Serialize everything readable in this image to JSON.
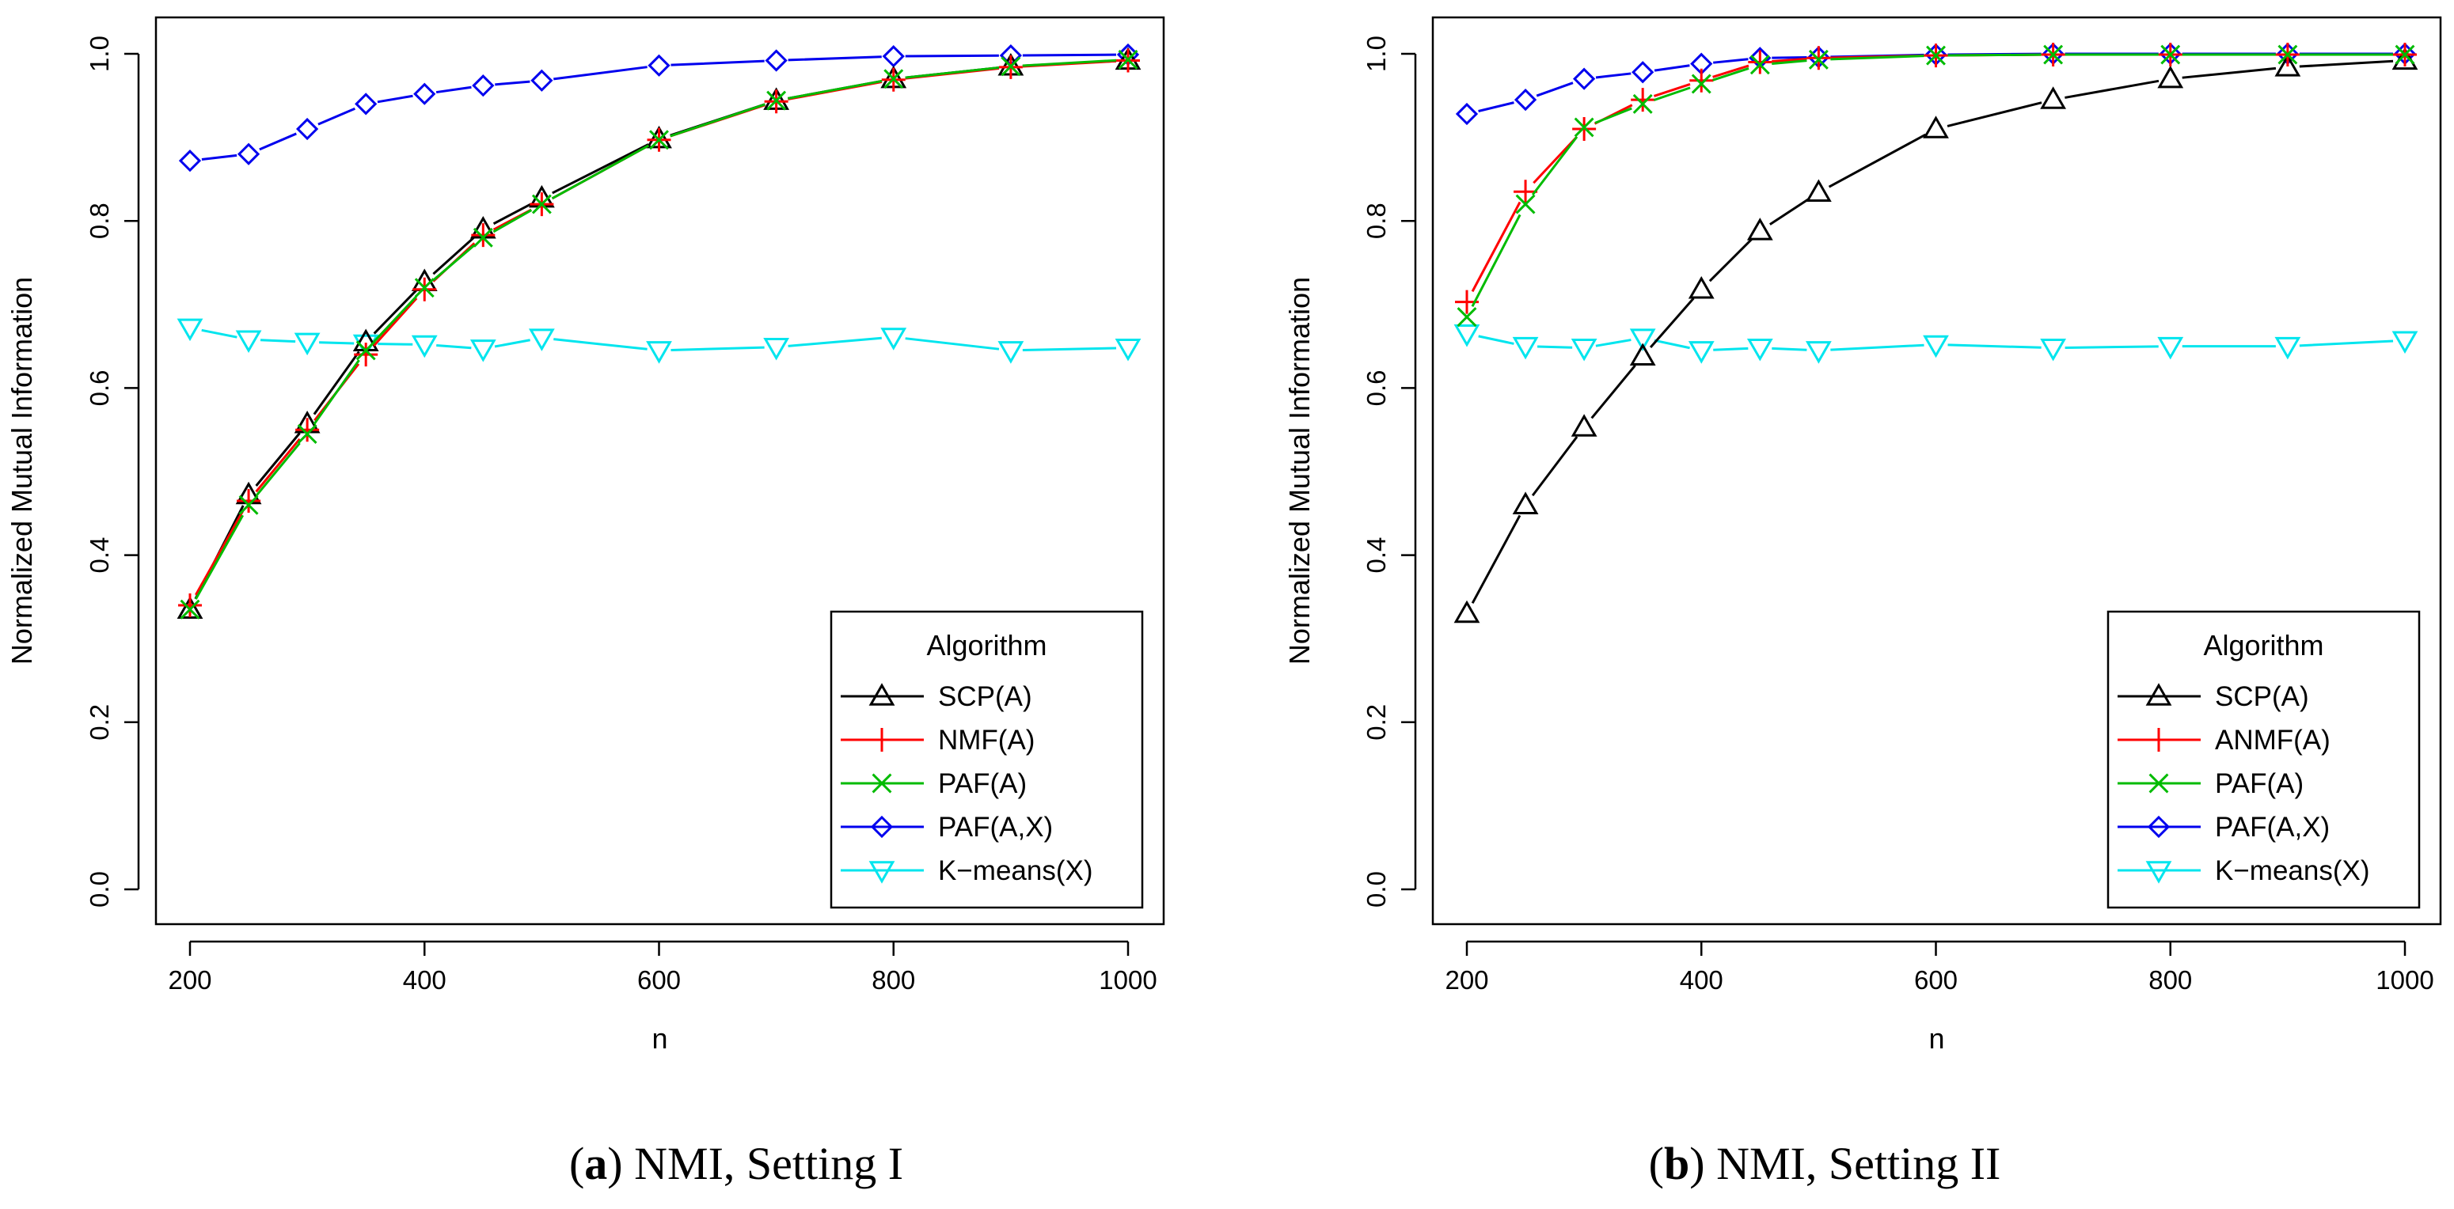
{
  "chart_data": [
    {
      "type": "line",
      "panel": "a",
      "caption_letter": "a",
      "caption_text": "NMI, Setting I",
      "xlabel": "n",
      "ylabel": "Normalized Mutual Information",
      "xlim": [
        200,
        1000
      ],
      "ylim": [
        0.0,
        1.0
      ],
      "xticks": [
        200,
        400,
        600,
        800,
        1000
      ],
      "yticks": [
        "0.0",
        "0.2",
        "0.4",
        "0.6",
        "0.8",
        "1.0"
      ],
      "legend_title": "Algorithm",
      "legend_position": "bottom-right",
      "x": [
        200,
        250,
        300,
        350,
        400,
        450,
        500,
        600,
        700,
        800,
        900,
        1000
      ],
      "series": [
        {
          "name": "SCP(A)",
          "color": "#000000",
          "marker": "triangle-up",
          "values": [
            0.335,
            0.472,
            0.557,
            0.655,
            0.727,
            0.79,
            0.827,
            0.898,
            0.944,
            0.97,
            0.985,
            0.992
          ]
        },
        {
          "name": "NMF(A)",
          "color": "#ff0000",
          "marker": "plus",
          "values": [
            0.34,
            0.465,
            0.55,
            0.64,
            0.718,
            0.783,
            0.82,
            0.897,
            0.943,
            0.969,
            0.984,
            0.992
          ]
        },
        {
          "name": "PAF(A)",
          "color": "#00bb00",
          "marker": "cross",
          "values": [
            0.335,
            0.46,
            0.545,
            0.645,
            0.72,
            0.78,
            0.82,
            0.897,
            0.944,
            0.97,
            0.985,
            0.993
          ]
        },
        {
          "name": "PAF(A,X)",
          "color": "#0000ee",
          "marker": "diamond",
          "values": [
            0.872,
            0.88,
            0.91,
            0.94,
            0.952,
            0.962,
            0.968,
            0.986,
            0.992,
            0.997,
            0.998,
            0.999
          ]
        },
        {
          "name": "K−means(X)",
          "color": "#00e5ee",
          "marker": "triangle-down",
          "values": [
            0.672,
            0.658,
            0.655,
            0.653,
            0.652,
            0.647,
            0.66,
            0.645,
            0.649,
            0.661,
            0.645,
            0.648
          ]
        }
      ]
    },
    {
      "type": "line",
      "panel": "b",
      "caption_letter": "b",
      "caption_text": "NMI, Setting II",
      "xlabel": "n",
      "ylabel": "Normalized Mutual Information",
      "xlim": [
        200,
        1000
      ],
      "ylim": [
        0.0,
        1.0
      ],
      "xticks": [
        200,
        400,
        600,
        800,
        1000
      ],
      "yticks": [
        "0.0",
        "0.2",
        "0.4",
        "0.6",
        "0.8",
        "1.0"
      ],
      "legend_title": "Algorithm",
      "legend_position": "bottom-right",
      "x": [
        200,
        250,
        300,
        350,
        400,
        450,
        500,
        600,
        700,
        800,
        900,
        1000
      ],
      "series": [
        {
          "name": "SCP(A)",
          "color": "#000000",
          "marker": "triangle-up",
          "values": [
            0.33,
            0.46,
            0.553,
            0.638,
            0.718,
            0.788,
            0.834,
            0.91,
            0.945,
            0.97,
            0.984,
            0.992
          ]
        },
        {
          "name": "ANMF(A)",
          "color": "#ff0000",
          "marker": "plus",
          "values": [
            0.703,
            0.835,
            0.91,
            0.945,
            0.968,
            0.99,
            0.995,
            0.998,
            0.999,
            0.999,
            0.999,
            0.999
          ]
        },
        {
          "name": "PAF(A)",
          "color": "#00bb00",
          "marker": "cross",
          "values": [
            0.685,
            0.82,
            0.912,
            0.94,
            0.964,
            0.987,
            0.993,
            0.998,
            0.999,
            0.999,
            0.999,
            0.999
          ]
        },
        {
          "name": "PAF(A,X)",
          "color": "#0000ee",
          "marker": "diamond",
          "values": [
            0.928,
            0.945,
            0.97,
            0.978,
            0.988,
            0.995,
            0.996,
            0.999,
            1.0,
            1.0,
            1.0,
            1.0
          ]
        },
        {
          "name": "K−means(X)",
          "color": "#00e5ee",
          "marker": "triangle-down",
          "values": [
            0.665,
            0.65,
            0.648,
            0.66,
            0.645,
            0.648,
            0.645,
            0.652,
            0.648,
            0.65,
            0.65,
            0.657
          ]
        }
      ]
    }
  ]
}
